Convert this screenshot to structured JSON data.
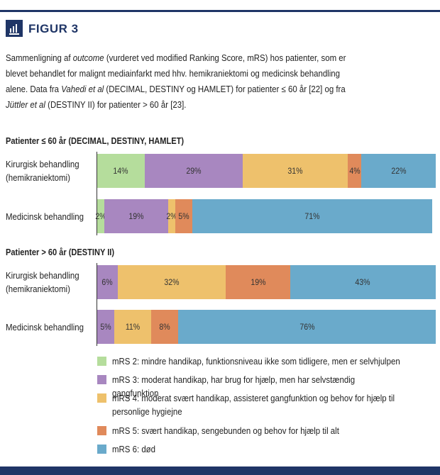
{
  "figure_label": "FIGUR 3",
  "caption": [
    [
      {
        "text": "Sammenligning af "
      },
      {
        "text": "outcome",
        "italic": true
      },
      {
        "text": " (vurderet ved modified Ranking Score, mRS) hos patienter, som er"
      }
    ],
    [
      {
        "text": "blevet behandlet for malignt mediainfarkt med hhv. hemikraniektomi og medicinsk behandling"
      }
    ],
    [
      {
        "text": "alene. Data fra "
      },
      {
        "text": "Vahedi et al",
        "italic": true
      },
      {
        "text": " (DECIMAL, DESTINY og HAMLET) for patienter ≤ 60 år [22] og fra"
      }
    ],
    [
      {
        "text": "Jüttler et al",
        "italic": true
      },
      {
        "text": " (DESTINY II) for patienter > 60 år [23]."
      }
    ]
  ],
  "legend": [
    {
      "name": "mRS 2: mindre handikap, funktionsniveau ikke som tidligere, men er selvhjulpen",
      "color": "#b5dd9c"
    },
    {
      "name": "mRS 3: moderat handikap, har brug for hjælp, men har selvstændig gangfunktion",
      "color": "#a887c0"
    },
    {
      "name": "mRS 4: moderat svært handikap, assisteret gangfunktion og behov for hjælp til\npersonlige hygiejne",
      "color": "#eec16c"
    },
    {
      "name": "mRS 5: svært handikap, sengebunden og behov for hjælp til alt",
      "color": "#e08a5b"
    },
    {
      "name": "mRS 6: død",
      "color": "#6aaacb"
    }
  ],
  "chart_data": [
    {
      "type": "bar",
      "orientation": "horizontal",
      "stacked": true,
      "title": "Patienter ≤ 60 år (DECIMAL, DESTINY, HAMLET)",
      "categories": [
        "Kirurgisk behandling\n(hemikraniektomi)",
        "Medicinsk behandling"
      ],
      "xlim": [
        0,
        100
      ],
      "series": [
        {
          "values": [
            14,
            2
          ],
          "value_labels": [
            "14%",
            "2%"
          ]
        },
        {
          "values": [
            29,
            19
          ],
          "value_labels": [
            "29%",
            "19%"
          ]
        },
        {
          "values": [
            31,
            2
          ],
          "value_labels": [
            "31%",
            "2%"
          ]
        },
        {
          "values": [
            4,
            5
          ],
          "value_labels": [
            "4%",
            "5%"
          ]
        },
        {
          "values": [
            22,
            71
          ],
          "value_labels": [
            "22%",
            "71%"
          ]
        }
      ]
    },
    {
      "type": "bar",
      "orientation": "horizontal",
      "stacked": true,
      "title": "Patienter > 60 år (DESTINY II)",
      "categories": [
        "Kirurgisk behandling\n(hemikraniektomi)",
        "Medicinsk behandling"
      ],
      "xlim": [
        0,
        100
      ],
      "series": [
        {
          "values": [
            0,
            0
          ],
          "value_labels": [
            null,
            null
          ]
        },
        {
          "values": [
            6,
            5
          ],
          "value_labels": [
            "6%",
            "5%"
          ]
        },
        {
          "values": [
            32,
            11
          ],
          "value_labels": [
            "32%",
            "11%"
          ]
        },
        {
          "values": [
            19,
            8
          ],
          "value_labels": [
            "19%",
            "8%"
          ]
        },
        {
          "values": [
            43,
            76
          ],
          "value_labels": [
            "43%",
            "76%"
          ]
        }
      ]
    }
  ]
}
